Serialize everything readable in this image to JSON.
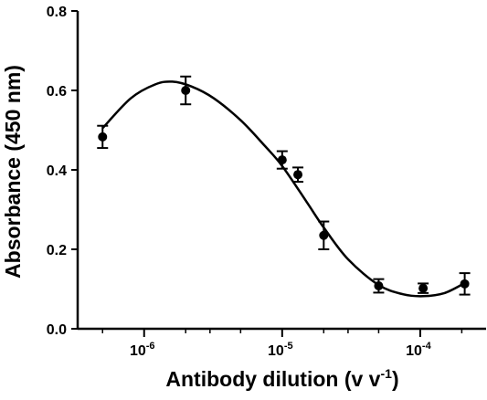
{
  "chart_data": {
    "type": "scatter",
    "title": "",
    "xlabel": "Antibody dilution",
    "xlabel_unit": "(v v",
    "xlabel_unit_exp": "-1",
    "xlabel_unit_close": ")",
    "ylabel": "Absorbance (450 nm)",
    "xscale": "log",
    "xlim": [
      3.3e-07,
      0.0003
    ],
    "ylim": [
      0,
      0.8
    ],
    "grid": false,
    "legend": "none",
    "y_ticks": [
      {
        "value": 0.0,
        "label": "0.0"
      },
      {
        "value": 0.2,
        "label": "0.2"
      },
      {
        "value": 0.4,
        "label": "0.4"
      },
      {
        "value": 0.6,
        "label": "0.6"
      },
      {
        "value": 0.8,
        "label": "0.8"
      }
    ],
    "x_ticks": [
      {
        "value": 1e-06,
        "base": "10",
        "exp": "-6"
      },
      {
        "value": 1e-05,
        "base": "10",
        "exp": "-5"
      },
      {
        "value": 0.0001,
        "base": "10",
        "exp": "-4"
      }
    ],
    "x_minor_ticks": [
      5e-07,
      2e-06,
      3e-06,
      5e-06,
      2e-05,
      3e-05,
      5e-05,
      0.0002
    ],
    "series": [
      {
        "points": [
          {
            "x": 5e-07,
            "y": 0.483,
            "err": 0.028
          },
          {
            "x": 2e-06,
            "y": 0.6,
            "err": 0.035
          },
          {
            "x": 1e-05,
            "y": 0.425,
            "err": 0.022
          },
          {
            "x": 1.3e-05,
            "y": 0.388,
            "err": 0.018
          },
          {
            "x": 2e-05,
            "y": 0.235,
            "err": 0.035
          },
          {
            "x": 5e-05,
            "y": 0.108,
            "err": 0.017
          },
          {
            "x": 0.000105,
            "y": 0.102,
            "err": 0.012
          },
          {
            "x": 0.00021,
            "y": 0.113,
            "err": 0.027
          }
        ]
      }
    ],
    "fit_curve": [
      {
        "x": 5e-07,
        "y": 0.505
      },
      {
        "x": 8e-07,
        "y": 0.58
      },
      {
        "x": 1.2e-06,
        "y": 0.615
      },
      {
        "x": 1.6e-06,
        "y": 0.622
      },
      {
        "x": 2.2e-06,
        "y": 0.61
      },
      {
        "x": 3.2e-06,
        "y": 0.58
      },
      {
        "x": 5e-06,
        "y": 0.525
      },
      {
        "x": 7.5e-06,
        "y": 0.46
      },
      {
        "x": 1e-05,
        "y": 0.41
      },
      {
        "x": 1.5e-05,
        "y": 0.32
      },
      {
        "x": 2e-05,
        "y": 0.255
      },
      {
        "x": 3e-05,
        "y": 0.175
      },
      {
        "x": 5e-05,
        "y": 0.11
      },
      {
        "x": 7.5e-05,
        "y": 0.087
      },
      {
        "x": 0.000105,
        "y": 0.082
      },
      {
        "x": 0.00015,
        "y": 0.09
      },
      {
        "x": 0.00021,
        "y": 0.115
      }
    ],
    "colors": {
      "marker": "#000000",
      "curve": "#000000",
      "axis": "#000000"
    }
  }
}
